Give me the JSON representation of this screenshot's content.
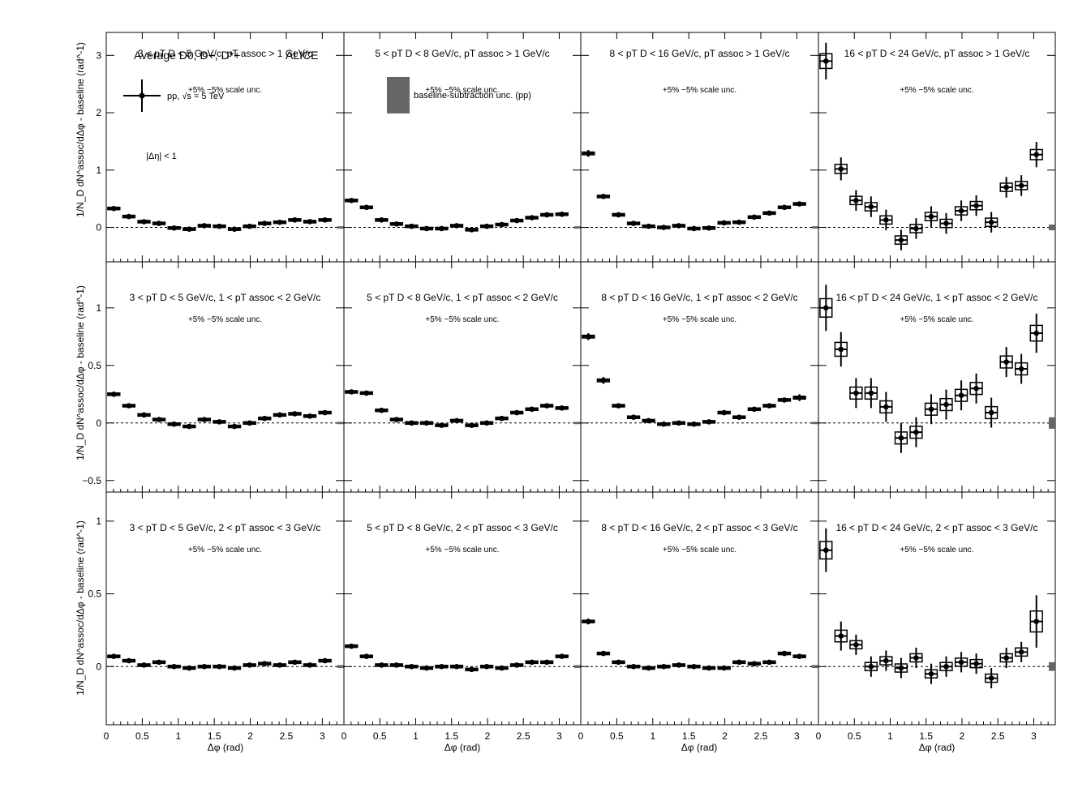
{
  "figure": {
    "header_title": "Average D0, D+, D*+",
    "experiment": "ALICE",
    "legend_pp": "pp, √s = 5 TeV",
    "legend_baseline": "baseline-subtraction unc. (pp)",
    "deta_label": "|Δη| < 1",
    "scale_unc": "+5% −5% scale unc.",
    "ylabel": "1/N_D dN^assoc/dΔφ - baseline (rad^-1)",
    "xlabel": "Δφ (rad)",
    "xticks": [
      "0",
      "0.5",
      "1",
      "1.5",
      "2",
      "2.5",
      "3"
    ],
    "colors": {
      "markers": "#000000",
      "band": "#666666"
    }
  },
  "chart_data": [
    {
      "type": "scatter",
      "row": 1,
      "col": 1,
      "title": "3 < pT D < 5 GeV/c, pT assoc > 1 GeV/c",
      "xlim": [
        0,
        3.3
      ],
      "ylim": [
        -0.6,
        3.4
      ],
      "yticks": [
        "0",
        "1",
        "2",
        "3"
      ],
      "x": [
        0.105,
        0.314,
        0.524,
        0.733,
        0.942,
        1.152,
        1.361,
        1.571,
        1.78,
        1.99,
        2.199,
        2.409,
        2.618,
        2.827,
        3.037
      ],
      "values": [
        0.33,
        0.19,
        0.1,
        0.07,
        -0.01,
        -0.03,
        0.03,
        0.02,
        -0.03,
        0.02,
        0.07,
        0.09,
        0.13,
        0.1,
        0.13
      ],
      "yerr": [
        0.03,
        0.03,
        0.03,
        0.03,
        0.03,
        0.03,
        0.03,
        0.03,
        0.03,
        0.03,
        0.03,
        0.03,
        0.03,
        0.03,
        0.03
      ],
      "band": 0.02
    },
    {
      "type": "scatter",
      "row": 1,
      "col": 2,
      "title": "5 < pT D < 8 GeV/c, pT assoc > 1 GeV/c",
      "xlim": [
        0,
        3.3
      ],
      "ylim": [
        -0.6,
        3.4
      ],
      "yticks": [
        "0",
        "1",
        "2",
        "3"
      ],
      "x": [
        0.105,
        0.314,
        0.524,
        0.733,
        0.942,
        1.152,
        1.361,
        1.571,
        1.78,
        1.99,
        2.199,
        2.409,
        2.618,
        2.827,
        3.037
      ],
      "values": [
        0.47,
        0.35,
        0.13,
        0.06,
        0.02,
        -0.02,
        -0.02,
        0.03,
        -0.04,
        0.02,
        0.05,
        0.12,
        0.17,
        0.22,
        0.23
      ],
      "yerr": [
        0.04,
        0.04,
        0.03,
        0.03,
        0.03,
        0.03,
        0.03,
        0.03,
        0.03,
        0.03,
        0.03,
        0.03,
        0.03,
        0.03,
        0.03
      ],
      "band": 0.02
    },
    {
      "type": "scatter",
      "row": 1,
      "col": 3,
      "title": "8 < pT D < 16 GeV/c, pT assoc > 1 GeV/c",
      "xlim": [
        0,
        3.3
      ],
      "ylim": [
        -0.6,
        3.4
      ],
      "yticks": [
        "0",
        "1",
        "2",
        "3"
      ],
      "x": [
        0.105,
        0.314,
        0.524,
        0.733,
        0.942,
        1.152,
        1.361,
        1.571,
        1.78,
        1.99,
        2.199,
        2.409,
        2.618,
        2.827,
        3.037
      ],
      "values": [
        1.29,
        0.54,
        0.22,
        0.07,
        0.02,
        0.0,
        0.03,
        -0.02,
        -0.01,
        0.08,
        0.09,
        0.18,
        0.25,
        0.35,
        0.41
      ],
      "yerr": [
        0.06,
        0.04,
        0.04,
        0.03,
        0.03,
        0.03,
        0.03,
        0.03,
        0.03,
        0.03,
        0.03,
        0.03,
        0.03,
        0.03,
        0.04
      ],
      "band": 0.02
    },
    {
      "type": "scatter",
      "row": 1,
      "col": 4,
      "title": "16 < pT D < 24 GeV/c, pT assoc > 1 GeV/c",
      "xlim": [
        0,
        3.3
      ],
      "ylim": [
        -0.6,
        3.4
      ],
      "yticks": [
        "0",
        "1",
        "2",
        "3"
      ],
      "x": [
        0.105,
        0.314,
        0.524,
        0.733,
        0.942,
        1.152,
        1.361,
        1.571,
        1.78,
        1.99,
        2.199,
        2.409,
        2.618,
        2.827,
        3.037
      ],
      "values": [
        2.9,
        1.02,
        0.47,
        0.36,
        0.13,
        -0.22,
        -0.02,
        0.19,
        0.07,
        0.29,
        0.38,
        0.09,
        0.7,
        0.73,
        1.27
      ],
      "yerr": [
        0.32,
        0.2,
        0.18,
        0.18,
        0.18,
        0.18,
        0.18,
        0.18,
        0.18,
        0.18,
        0.18,
        0.18,
        0.18,
        0.18,
        0.22
      ],
      "band": 0.05
    },
    {
      "type": "scatter",
      "row": 2,
      "col": 1,
      "title": "3 < pT D < 5 GeV/c, 1 < pT assoc < 2 GeV/c",
      "xlim": [
        0,
        3.3
      ],
      "ylim": [
        -0.6,
        1.4
      ],
      "yticks": [
        "−0.5",
        "0",
        "0.5",
        "1"
      ],
      "x": [
        0.105,
        0.314,
        0.524,
        0.733,
        0.942,
        1.152,
        1.361,
        1.571,
        1.78,
        1.99,
        2.199,
        2.409,
        2.618,
        2.827,
        3.037
      ],
      "values": [
        0.25,
        0.15,
        0.07,
        0.03,
        -0.01,
        -0.03,
        0.03,
        0.01,
        -0.03,
        0.0,
        0.04,
        0.07,
        0.08,
        0.06,
        0.09
      ],
      "yerr": [
        0.02,
        0.02,
        0.02,
        0.02,
        0.02,
        0.02,
        0.02,
        0.02,
        0.02,
        0.02,
        0.02,
        0.02,
        0.02,
        0.02,
        0.02
      ],
      "band": 0.01
    },
    {
      "type": "scatter",
      "row": 2,
      "col": 2,
      "title": "5 < pT D < 8 GeV/c, 1 < pT assoc < 2 GeV/c",
      "xlim": [
        0,
        3.3
      ],
      "ylim": [
        -0.6,
        1.4
      ],
      "yticks": [
        "−0.5",
        "0",
        "0.5",
        "1"
      ],
      "x": [
        0.105,
        0.314,
        0.524,
        0.733,
        0.942,
        1.152,
        1.361,
        1.571,
        1.78,
        1.99,
        2.199,
        2.409,
        2.618,
        2.827,
        3.037
      ],
      "values": [
        0.27,
        0.26,
        0.11,
        0.03,
        0.0,
        0.0,
        -0.02,
        0.02,
        -0.02,
        0.0,
        0.04,
        0.09,
        0.12,
        0.15,
        0.13
      ],
      "yerr": [
        0.02,
        0.02,
        0.02,
        0.02,
        0.02,
        0.02,
        0.02,
        0.02,
        0.02,
        0.02,
        0.02,
        0.02,
        0.02,
        0.02,
        0.02
      ],
      "band": 0.01
    },
    {
      "type": "scatter",
      "row": 2,
      "col": 3,
      "title": "8 < pT D < 16 GeV/c, 1 < pT assoc < 2 GeV/c",
      "xlim": [
        0,
        3.3
      ],
      "ylim": [
        -0.6,
        1.4
      ],
      "yticks": [
        "−0.5",
        "0",
        "0.5",
        "1"
      ],
      "x": [
        0.105,
        0.314,
        0.524,
        0.733,
        0.942,
        1.152,
        1.361,
        1.571,
        1.78,
        1.99,
        2.199,
        2.409,
        2.618,
        2.827,
        3.037
      ],
      "values": [
        0.75,
        0.37,
        0.15,
        0.05,
        0.02,
        -0.01,
        0.0,
        -0.01,
        0.01,
        0.09,
        0.05,
        0.12,
        0.15,
        0.2,
        0.22
      ],
      "yerr": [
        0.03,
        0.03,
        0.02,
        0.02,
        0.02,
        0.02,
        0.02,
        0.02,
        0.02,
        0.02,
        0.02,
        0.02,
        0.02,
        0.02,
        0.03
      ],
      "band": 0.01
    },
    {
      "type": "scatter",
      "row": 2,
      "col": 4,
      "title": "16 < pT D < 24 GeV/c, 1 < pT assoc < 2 GeV/c",
      "xlim": [
        0,
        3.3
      ],
      "ylim": [
        -0.6,
        1.4
      ],
      "yticks": [
        "−0.5",
        "0",
        "0.5",
        "1"
      ],
      "x": [
        0.105,
        0.314,
        0.524,
        0.733,
        0.942,
        1.152,
        1.361,
        1.571,
        1.78,
        1.99,
        2.199,
        2.409,
        2.618,
        2.827,
        3.037
      ],
      "values": [
        1.0,
        0.64,
        0.26,
        0.26,
        0.14,
        -0.13,
        -0.08,
        0.12,
        0.16,
        0.24,
        0.3,
        0.09,
        0.53,
        0.47,
        0.78
      ],
      "yerr": [
        0.2,
        0.15,
        0.13,
        0.13,
        0.13,
        0.13,
        0.13,
        0.13,
        0.13,
        0.13,
        0.13,
        0.13,
        0.13,
        0.13,
        0.17
      ],
      "band": 0.05
    },
    {
      "type": "scatter",
      "row": 3,
      "col": 1,
      "title": "3 < pT D < 5 GeV/c, 2 < pT assoc < 3 GeV/c",
      "xlim": [
        0,
        3.3
      ],
      "ylim": [
        -0.4,
        1.2
      ],
      "yticks": [
        "0",
        "0.5",
        "1"
      ],
      "x": [
        0.105,
        0.314,
        0.524,
        0.733,
        0.942,
        1.152,
        1.361,
        1.571,
        1.78,
        1.99,
        2.199,
        2.409,
        2.618,
        2.827,
        3.037
      ],
      "values": [
        0.07,
        0.04,
        0.01,
        0.03,
        0.0,
        -0.01,
        0.0,
        0.0,
        -0.01,
        0.01,
        0.02,
        0.01,
        0.03,
        0.01,
        0.04
      ],
      "yerr": [
        0.015,
        0.015,
        0.015,
        0.015,
        0.015,
        0.015,
        0.015,
        0.015,
        0.015,
        0.015,
        0.015,
        0.015,
        0.015,
        0.015,
        0.015
      ],
      "band": 0.01
    },
    {
      "type": "scatter",
      "row": 3,
      "col": 2,
      "title": "5 < pT D < 8 GeV/c, 2 < pT assoc < 3 GeV/c",
      "xlim": [
        0,
        3.3
      ],
      "ylim": [
        -0.4,
        1.2
      ],
      "yticks": [
        "0",
        "0.5",
        "1"
      ],
      "x": [
        0.105,
        0.314,
        0.524,
        0.733,
        0.942,
        1.152,
        1.361,
        1.571,
        1.78,
        1.99,
        2.199,
        2.409,
        2.618,
        2.827,
        3.037
      ],
      "values": [
        0.14,
        0.07,
        0.01,
        0.01,
        0.0,
        -0.01,
        0.0,
        0.0,
        -0.02,
        0.0,
        -0.01,
        0.01,
        0.03,
        0.03,
        0.07
      ],
      "yerr": [
        0.015,
        0.015,
        0.015,
        0.015,
        0.015,
        0.015,
        0.015,
        0.015,
        0.015,
        0.015,
        0.015,
        0.015,
        0.015,
        0.015,
        0.015
      ],
      "band": 0.01
    },
    {
      "type": "scatter",
      "row": 3,
      "col": 3,
      "title": "8 < pT D < 16 GeV/c, 2 < pT assoc < 3 GeV/c",
      "xlim": [
        0,
        3.3
      ],
      "ylim": [
        -0.4,
        1.2
      ],
      "yticks": [
        "0",
        "0.5",
        "1"
      ],
      "x": [
        0.105,
        0.314,
        0.524,
        0.733,
        0.942,
        1.152,
        1.361,
        1.571,
        1.78,
        1.99,
        2.199,
        2.409,
        2.618,
        2.827,
        3.037
      ],
      "values": [
        0.31,
        0.09,
        0.03,
        0.0,
        -0.01,
        0.0,
        0.01,
        0.0,
        -0.01,
        -0.01,
        0.03,
        0.02,
        0.03,
        0.09,
        0.07
      ],
      "yerr": [
        0.02,
        0.015,
        0.015,
        0.015,
        0.015,
        0.015,
        0.015,
        0.015,
        0.015,
        0.015,
        0.015,
        0.015,
        0.015,
        0.015,
        0.015
      ],
      "band": 0.01
    },
    {
      "type": "scatter",
      "row": 3,
      "col": 4,
      "title": "16 < pT D < 24 GeV/c, 2 < pT assoc < 3 GeV/c",
      "xlim": [
        0,
        3.3
      ],
      "ylim": [
        -0.4,
        1.2
      ],
      "yticks": [
        "0",
        "0.5",
        "1"
      ],
      "x": [
        0.105,
        0.314,
        0.524,
        0.733,
        0.942,
        1.152,
        1.361,
        1.571,
        1.78,
        1.99,
        2.199,
        2.409,
        2.618,
        2.827,
        3.037
      ],
      "values": [
        0.8,
        0.21,
        0.15,
        0.0,
        0.04,
        -0.01,
        0.06,
        -0.05,
        0.0,
        0.03,
        0.02,
        -0.08,
        0.06,
        0.1,
        0.31
      ],
      "yerr": [
        0.15,
        0.1,
        0.07,
        0.07,
        0.07,
        0.07,
        0.07,
        0.07,
        0.07,
        0.07,
        0.07,
        0.07,
        0.07,
        0.07,
        0.18
      ],
      "band": 0.03
    }
  ]
}
